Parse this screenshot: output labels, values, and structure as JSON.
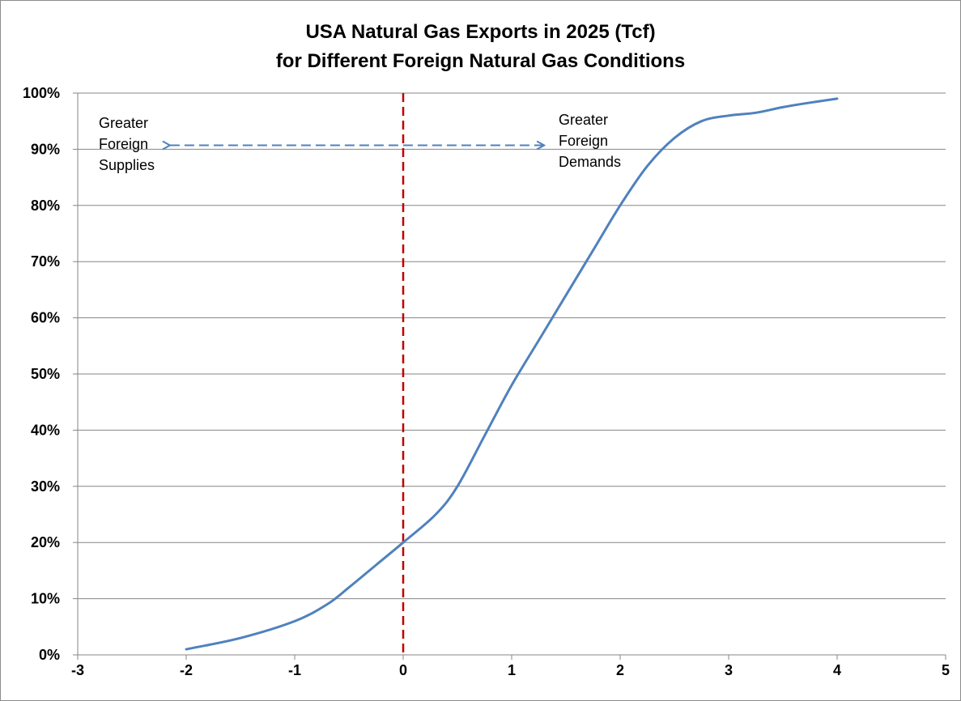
{
  "chart_data": {
    "type": "line",
    "title": [
      "USA Natural Gas Exports in 2025 (Tcf)",
      "for Different Foreign Natural Gas Conditions"
    ],
    "xlabel": "",
    "ylabel": "",
    "xlim": [
      -3,
      5
    ],
    "ylim": [
      0,
      1
    ],
    "x_ticks": [
      -3,
      -2,
      -1,
      0,
      1,
      2,
      3,
      4,
      5
    ],
    "x_tick_labels": [
      "-3",
      "-2",
      "-1",
      "0",
      "1",
      "2",
      "3",
      "4",
      "5"
    ],
    "y_ticks": [
      0,
      0.1,
      0.2,
      0.3,
      0.4,
      0.5,
      0.6,
      0.7,
      0.8,
      0.9,
      1.0
    ],
    "y_tick_labels": [
      "0%",
      "10%",
      "20%",
      "30%",
      "40%",
      "50%",
      "60%",
      "70%",
      "80%",
      "90%",
      "100%"
    ],
    "grid": "horizontal",
    "series": [
      {
        "color": "#4f81bd",
        "x": [
          -2.0,
          -1.5,
          -1.0,
          -0.7,
          -0.5,
          -0.25,
          0.0,
          0.3,
          0.5,
          0.75,
          1.0,
          1.25,
          1.5,
          1.75,
          2.0,
          2.25,
          2.5,
          2.75,
          3.0,
          3.25,
          3.5,
          3.75,
          4.0
        ],
        "y": [
          0.01,
          0.03,
          0.06,
          0.09,
          0.12,
          0.16,
          0.2,
          0.25,
          0.3,
          0.39,
          0.48,
          0.56,
          0.64,
          0.72,
          0.8,
          0.87,
          0.92,
          0.95,
          0.96,
          0.965,
          0.975,
          0.983,
          0.99
        ]
      }
    ],
    "reference_line": {
      "x": 0,
      "color": "#c00000",
      "style": "dashed"
    },
    "annotations": [
      {
        "lines": [
          "Greater",
          "Foreign",
          "Supplies"
        ]
      },
      {
        "lines": [
          "Greater",
          "Foreign",
          "Demands"
        ]
      }
    ],
    "arrow": {
      "x_from": 1.3,
      "x_to": -2.15,
      "y": 0.907,
      "color": "#4f81bd",
      "style": "dashed",
      "direction": "both"
    }
  }
}
